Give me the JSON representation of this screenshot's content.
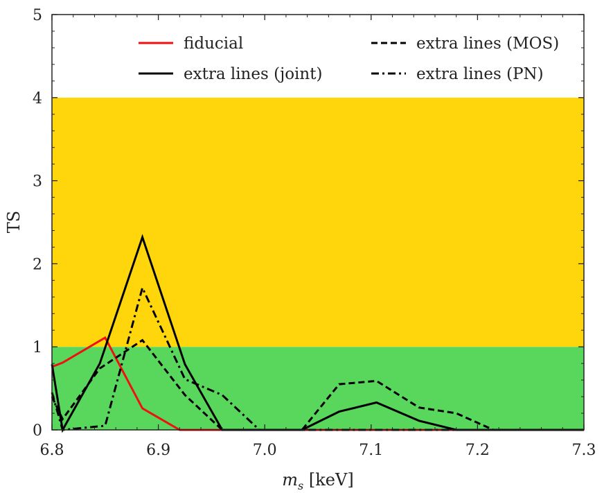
{
  "chart_data": {
    "type": "line",
    "title": "",
    "xlabel_italic": "m",
    "xlabel_sub": "s",
    "xlabel_rest": " [keV]",
    "ylabel": "TS",
    "xlim": [
      6.8,
      7.3
    ],
    "ylim": [
      0,
      5
    ],
    "xticks": [
      "6.8",
      "6.9",
      "7.0",
      "7.1",
      "7.2",
      "7.3"
    ],
    "yticks": [
      "0",
      "1",
      "2",
      "3",
      "4",
      "5"
    ],
    "grid": false,
    "legend_placement": "top",
    "bands": [
      {
        "from": 0,
        "to": 1,
        "color": "#59d75d"
      },
      {
        "from": 1,
        "to": 4,
        "color": "#ffd60b"
      }
    ],
    "series": [
      {
        "name": "fiducial",
        "color": "#ee1111",
        "style": "solid",
        "x": [
          6.8,
          6.81,
          6.85,
          6.885,
          6.92,
          7.3
        ],
        "y": [
          0.76,
          0.81,
          1.11,
          0.26,
          0.0,
          0.0
        ]
      },
      {
        "name": "extra lines (joint)",
        "color": "#000000",
        "style": "solid",
        "x": [
          6.8,
          6.81,
          6.845,
          6.885,
          6.925,
          6.96,
          7.035,
          7.07,
          7.105,
          7.145,
          7.18,
          7.3
        ],
        "y": [
          0.79,
          0.0,
          0.8,
          2.32,
          0.79,
          0.0,
          0.0,
          0.22,
          0.33,
          0.11,
          0.0,
          0.0
        ]
      },
      {
        "name": "extra lines (MOS)",
        "color": "#000000",
        "style": "dashed",
        "x": [
          6.8,
          6.81,
          6.845,
          6.885,
          6.925,
          6.96,
          7.035,
          7.07,
          7.105,
          7.145,
          7.18,
          7.215,
          7.3
        ],
        "y": [
          0.4,
          0.13,
          0.74,
          1.08,
          0.42,
          0.0,
          0.0,
          0.55,
          0.59,
          0.27,
          0.2,
          0.0,
          0.0
        ]
      },
      {
        "name": "extra lines (PN)",
        "color": "#000000",
        "style": "dashdot",
        "x": [
          6.8,
          6.81,
          6.85,
          6.885,
          6.925,
          6.96,
          6.995,
          7.3
        ],
        "y": [
          0.45,
          0.0,
          0.05,
          1.71,
          0.61,
          0.42,
          0.0,
          0.0
        ]
      }
    ]
  }
}
